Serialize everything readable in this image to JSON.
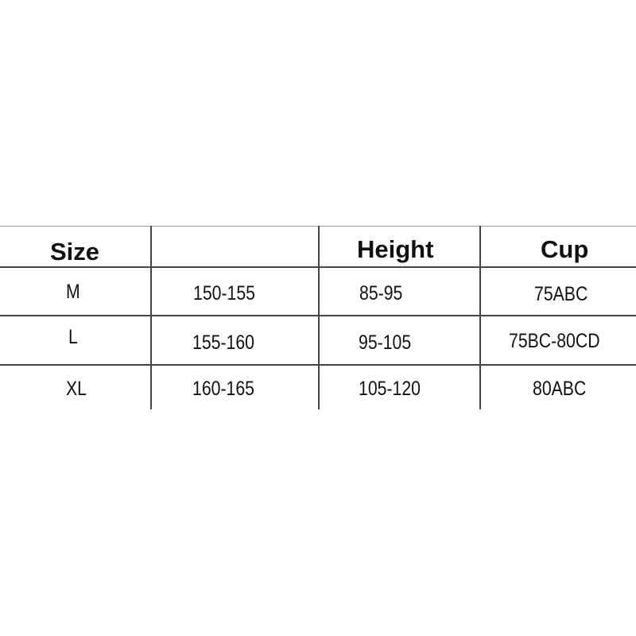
{
  "table": {
    "headers": [
      "Size",
      "",
      "Height",
      "Cup"
    ],
    "rows": [
      [
        "M",
        "150-155",
        "85-95",
        "75ABC"
      ],
      [
        "L",
        "155-160",
        "95-105",
        "75BC-80CD"
      ],
      [
        "XL",
        "160-165",
        "105-120",
        "80ABC"
      ]
    ]
  }
}
